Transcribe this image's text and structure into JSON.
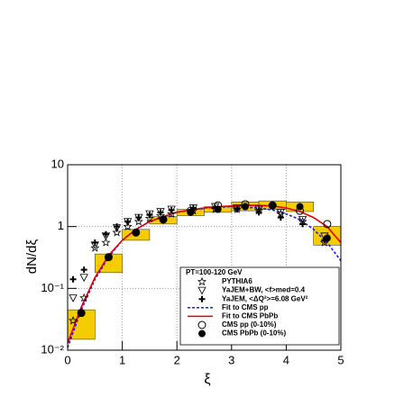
{
  "chart_data": {
    "type": "scatter",
    "xlabel": "ξ",
    "ylabel": "dN/dξ",
    "xlim": [
      0,
      5
    ],
    "ylim": [
      0.01,
      10
    ],
    "log_y": true,
    "grid": true,
    "xticks": [
      0,
      1,
      2,
      3,
      4,
      5
    ],
    "yticks": [
      {
        "value": 0.01,
        "label": "10⁻²"
      },
      {
        "value": 0.1,
        "label": "10⁻¹"
      },
      1,
      10
    ],
    "legend_title": "PT=100-120 GeV",
    "series": [
      {
        "name": "PYTHIA6",
        "marker": "star",
        "color": "#000000",
        "x": [
          0.1,
          0.3,
          0.5,
          0.7,
          0.9,
          1.1,
          1.3,
          1.5,
          1.7,
          1.9,
          2.3,
          2.7,
          3.1,
          3.5,
          3.9,
          4.3,
          4.7
        ],
        "values": [
          0.03,
          0.07,
          0.45,
          0.55,
          0.8,
          1.0,
          1.2,
          1.35,
          1.5,
          1.6,
          1.8,
          1.9,
          1.9,
          1.8,
          1.6,
          1.2,
          0.55
        ]
      },
      {
        "name": "YaJEM+BW, <f>med=0.4",
        "marker": "triangle-down",
        "color": "#000000",
        "x": [
          0.1,
          0.3,
          0.5,
          0.7,
          0.9,
          1.1,
          1.3,
          1.5,
          1.7,
          1.9,
          2.3,
          2.7,
          3.1,
          3.5,
          3.9,
          4.3,
          4.7
        ],
        "values": [
          0.07,
          0.15,
          0.5,
          0.7,
          0.95,
          1.2,
          1.4,
          1.6,
          1.75,
          1.9,
          2.0,
          2.1,
          2.0,
          1.9,
          1.7,
          1.3,
          0.7
        ]
      },
      {
        "name": "YaJEM, <ΔQ²>=6.08 GeV²",
        "marker": "plus",
        "color": "#000000",
        "x": [
          0.1,
          0.3,
          0.5,
          0.7,
          0.9,
          1.1,
          1.3,
          1.5,
          1.7,
          1.9,
          2.3,
          2.7,
          3.1,
          3.5,
          3.9,
          4.3,
          4.7
        ],
        "values": [
          0.14,
          0.2,
          0.55,
          0.75,
          1.0,
          1.2,
          1.4,
          1.55,
          1.7,
          1.85,
          2.0,
          2.0,
          1.9,
          1.7,
          1.4,
          1.1,
          0.6
        ]
      },
      {
        "name": "Fit to CMS pp",
        "marker": "dash-line",
        "color": "#1a1aff",
        "x": [
          0,
          0.25,
          0.5,
          0.75,
          1,
          1.25,
          1.5,
          1.75,
          2,
          2.25,
          2.5,
          2.75,
          3,
          3.25,
          3.5,
          3.75,
          4,
          4.25,
          4.5,
          4.75,
          5
        ],
        "values": [
          0.011,
          0.045,
          0.14,
          0.32,
          0.6,
          0.9,
          1.2,
          1.45,
          1.7,
          1.85,
          2.0,
          2.05,
          2.1,
          2.05,
          2.0,
          1.85,
          1.6,
          1.3,
          0.9,
          0.55,
          0.28
        ]
      },
      {
        "name": "Fit to CMS PbPb",
        "marker": "line",
        "color": "#e00000",
        "x": [
          0,
          0.25,
          0.5,
          0.75,
          1,
          1.25,
          1.5,
          1.75,
          2,
          2.25,
          2.5,
          2.75,
          3,
          3.25,
          3.5,
          3.75,
          4,
          4.25,
          4.5,
          4.75,
          5
        ],
        "values": [
          0.013,
          0.05,
          0.15,
          0.34,
          0.6,
          0.9,
          1.2,
          1.45,
          1.7,
          1.85,
          2.0,
          2.1,
          2.15,
          2.2,
          2.2,
          2.15,
          2.0,
          1.75,
          1.4,
          1.0,
          0.55
        ]
      },
      {
        "name": "CMS pp (0-10%)",
        "marker": "circle-open",
        "color": "#000000",
        "x": [
          0.25,
          0.75,
          1.25,
          1.75,
          2.25,
          2.75,
          3.25,
          3.75,
          4.25,
          4.75
        ],
        "values": [
          0.04,
          0.32,
          0.8,
          1.3,
          1.8,
          2.2,
          2.3,
          2.2,
          1.8,
          1.1
        ]
      },
      {
        "name": "CMS PbPb (0-10%)",
        "marker": "circle",
        "color": "#000000",
        "x": [
          0.25,
          0.75,
          1.25,
          1.75,
          2.25,
          2.75,
          3.25,
          3.75,
          4.25,
          4.75
        ],
        "values": [
          0.04,
          0.32,
          0.8,
          1.3,
          1.7,
          1.9,
          2.1,
          2.2,
          2.1,
          0.65
        ],
        "sys_low": [
          0.015,
          0.18,
          0.6,
          1.1,
          1.5,
          1.7,
          1.8,
          1.9,
          1.75,
          0.5
        ],
        "sys_high": [
          0.045,
          0.36,
          0.9,
          1.45,
          1.9,
          2.1,
          2.5,
          2.6,
          2.5,
          1.0
        ],
        "sys_color": "#f5cc00"
      }
    ]
  }
}
